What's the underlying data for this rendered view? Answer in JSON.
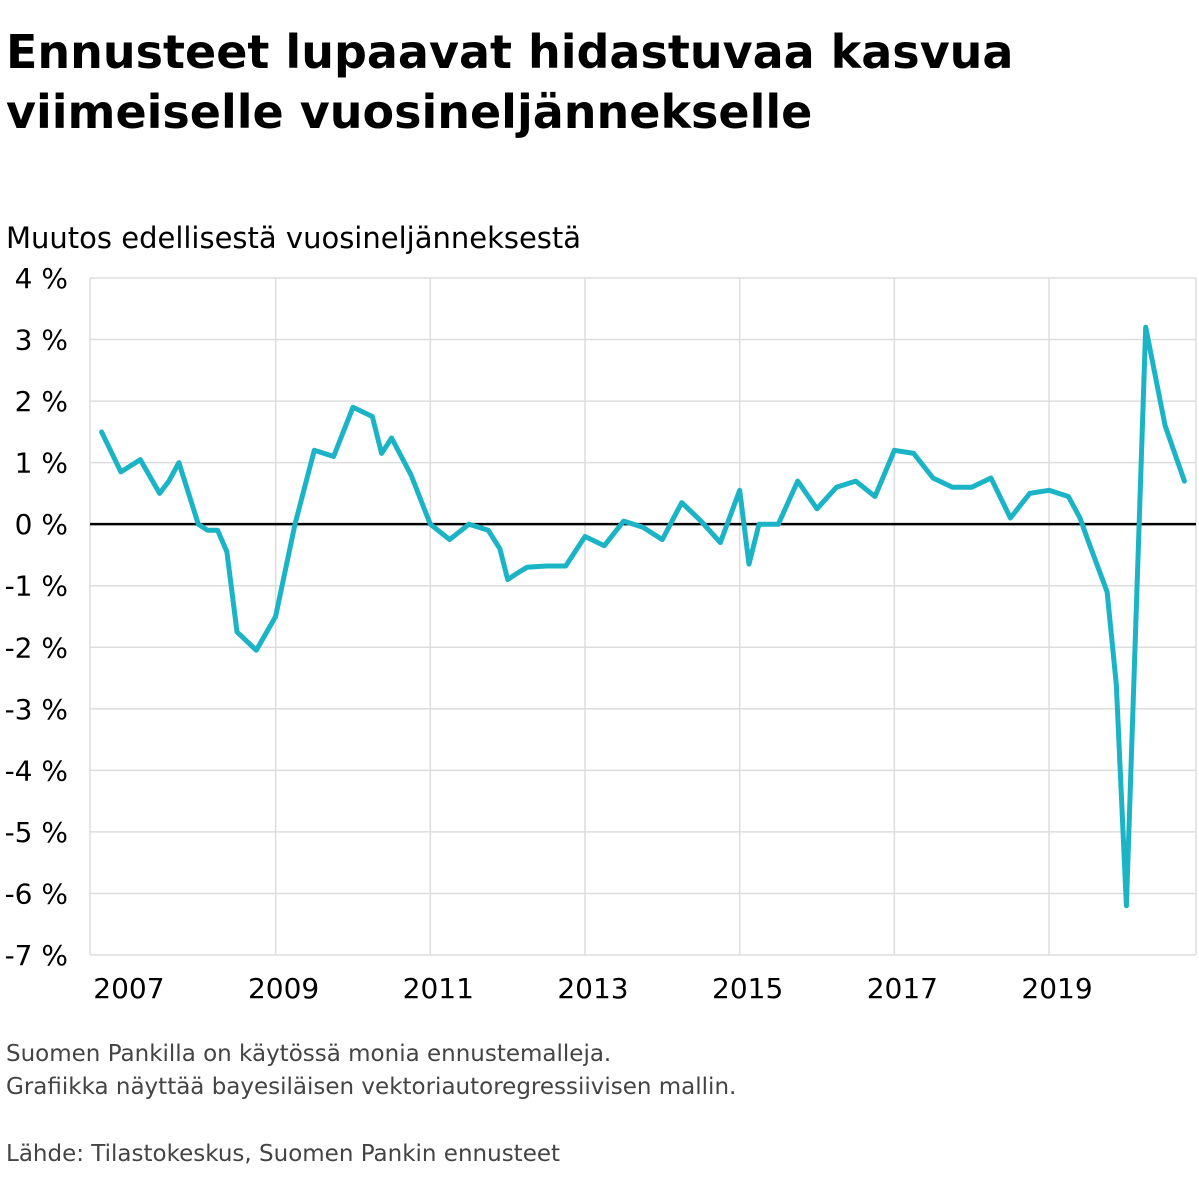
{
  "header": {
    "title": "Ennusteet lupaavat hidastuvaa kasvua viimeiselle vuosineljännekselle",
    "subtitle": "Muutos edellisestä vuosineljänneksestä"
  },
  "footer": {
    "note_line1": "Suomen Pankilla on käytössä monia ennustemalleja.",
    "note_line2": "Grafiikka näyttää bayesiläisen vektoriautoregressiivisen mallin.",
    "source": "Lähde: Tilastokeskus, Suomen Pankin ennusteet"
  },
  "colors": {
    "line": "#1AB4C6",
    "grid": "#dddddd",
    "zero_line": "#000000"
  },
  "chart_data": {
    "type": "line",
    "title": "Ennusteet lupaavat hidastuvaa kasvua viimeiselle vuosineljännekselle",
    "ylabel": "Muutos edellisestä vuosineljänneksestä",
    "xlabel": "",
    "ylim": [
      -7,
      4
    ],
    "xlim": [
      2006.6,
      2020.9
    ],
    "y_ticks": [
      4,
      3,
      2,
      1,
      0,
      -1,
      -2,
      -3,
      -4,
      -5,
      -6,
      -7
    ],
    "y_tick_labels": [
      "4 %",
      "3 %",
      "2 %",
      "1 %",
      "0 %",
      "-1 %",
      "-2 %",
      "-3 %",
      "-4 %",
      "-5 %",
      "-6 %",
      "-7 %"
    ],
    "x_gridlines": [
      2009,
      2011,
      2013,
      2015,
      2017,
      2019
    ],
    "x_tick_labels": [
      "2007",
      "2009",
      "2011",
      "2013",
      "2015",
      "2017",
      "2019"
    ],
    "x_tick_positions": [
      2007,
      2009,
      2011,
      2013,
      2015,
      2017,
      2019
    ],
    "grid": true,
    "zero_line": true,
    "series": [
      {
        "x": [
          2006.75,
          2007.0,
          2007.25,
          2007.5,
          2007.62,
          2007.75,
          2008.0,
          2008.12,
          2008.25,
          2008.37,
          2008.5,
          2008.75,
          2009.0,
          2009.25,
          2009.5,
          2009.75,
          2010.0,
          2010.25,
          2010.37,
          2010.5,
          2010.75,
          2011.0,
          2011.25,
          2011.5,
          2011.75,
          2011.9,
          2012.0,
          2012.12,
          2012.25,
          2012.5,
          2012.75,
          2013.0,
          2013.25,
          2013.5,
          2013.75,
          2014.0,
          2014.25,
          2014.5,
          2014.75,
          2015.0,
          2015.12,
          2015.25,
          2015.5,
          2015.75,
          2016.0,
          2016.25,
          2016.5,
          2016.75,
          2017.0,
          2017.25,
          2017.5,
          2017.75,
          2018.0,
          2018.25,
          2018.5,
          2018.75,
          2019.0,
          2019.25,
          2019.4,
          2019.5,
          2019.75,
          2019.87,
          2020.0,
          2020.25,
          2020.5,
          2020.75
        ],
        "values": [
          1.5,
          0.85,
          1.05,
          0.5,
          0.7,
          1.0,
          0.0,
          -0.1,
          -0.1,
          -0.45,
          -1.75,
          -2.05,
          -1.5,
          0.0,
          1.2,
          1.1,
          1.9,
          1.75,
          1.15,
          1.4,
          0.8,
          0.0,
          -0.25,
          0.0,
          -0.1,
          -0.4,
          -0.9,
          -0.8,
          -0.7,
          -0.68,
          -0.68,
          -0.2,
          -0.35,
          0.05,
          -0.05,
          -0.25,
          0.35,
          0.05,
          -0.3,
          0.55,
          -0.65,
          0.0,
          0.0,
          0.7,
          0.25,
          0.6,
          0.7,
          0.45,
          1.2,
          1.15,
          0.75,
          0.6,
          0.6,
          0.75,
          0.1,
          0.5,
          0.55,
          0.45,
          0.1,
          -0.25,
          -1.1,
          -2.6,
          -6.2,
          3.2,
          1.6,
          0.7
        ]
      }
    ]
  }
}
